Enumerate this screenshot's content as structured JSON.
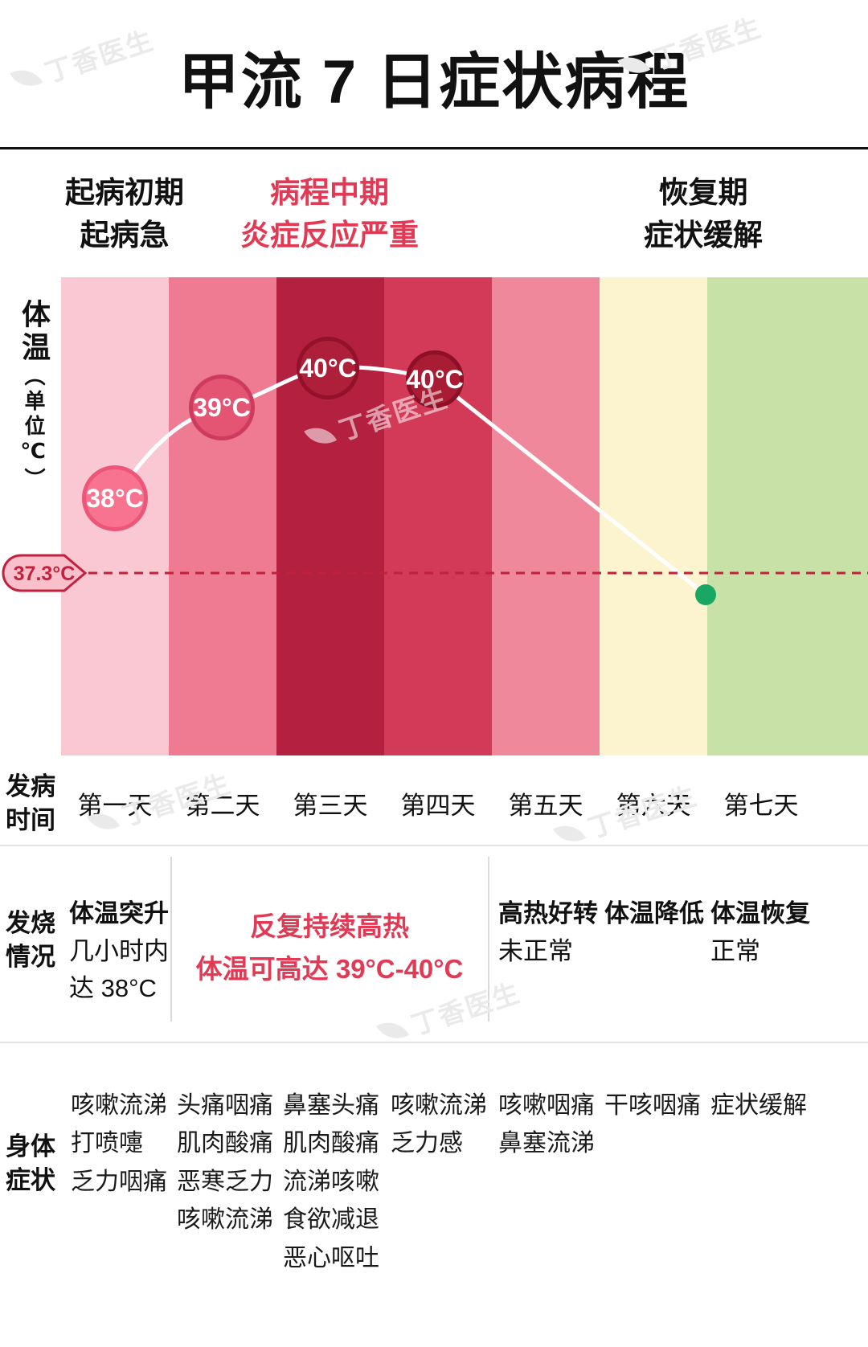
{
  "header": {
    "title": "甲流 7 日症状病程",
    "phases": [
      {
        "lines": [
          "起病初期",
          "起病急"
        ],
        "highlight": false
      },
      {
        "lines": [
          "病程中期",
          "炎症反应严重"
        ],
        "highlight": true
      },
      {
        "lines": [
          "恢复期",
          "症状缓解"
        ],
        "highlight": false
      }
    ]
  },
  "axis": {
    "title": "体温",
    "unit": "（单位℃）"
  },
  "colors": {
    "accent": "#e23a55",
    "threshold": "#c2203c",
    "curve": "#ffffff",
    "recovery_dot": "#19a863",
    "thermometer_fill": "#f9c0cc"
  },
  "chart_data": {
    "type": "line",
    "title": "甲流 7 日症状病程",
    "ylabel": "体温（单位℃）",
    "x_categories": [
      "第一天",
      "第二天",
      "第三天",
      "第四天",
      "第五天",
      "第六天",
      "第七天"
    ],
    "series": [
      {
        "name": "体温",
        "points": [
          {
            "x": "第一天",
            "value": 38,
            "label": "38°C"
          },
          {
            "x": "第二天",
            "value": 39,
            "label": "39°C"
          },
          {
            "x": "第三天",
            "value": 40,
            "label": "40°C"
          },
          {
            "x": "第四天",
            "value": 40,
            "label": "40°C"
          }
        ]
      }
    ],
    "recovery_point": {
      "x": "第六天/第七天",
      "value": 37.2
    },
    "threshold": {
      "value": 37.3,
      "label": "37.3°C"
    },
    "band_colors": [
      "#f9c8d2",
      "#ee7b92",
      "#b4203f",
      "#d23a57",
      "#f0889c",
      "#fcf3cf",
      "#c8e1a6"
    ],
    "point_fill_colors": [
      "#f7738f",
      "#e35573",
      "#ae2039",
      "#a81d33"
    ],
    "point_stroke_colors": [
      "#ee5679",
      "#ce3b5e",
      "#931129",
      "#8d1026"
    ],
    "line_color": "#ffffff",
    "threshold_color": "#c2203c",
    "recovery_point_color": "#19a863",
    "legend": "none",
    "grid": false
  },
  "rows": {
    "time": {
      "label": [
        "发病",
        "时间"
      ]
    },
    "fever": {
      "label": [
        "发烧",
        "情况"
      ],
      "day1": [
        "体温突升",
        "几小时内",
        "达 38°C"
      ],
      "day2to4": [
        "反复持续高热",
        "体温可高达 39°C-40°C"
      ],
      "day5": [
        "高热好转",
        "未正常"
      ],
      "day6": [
        "体温降低"
      ],
      "day7": [
        "体温恢复",
        "正常"
      ]
    },
    "symptoms": {
      "label": [
        "身体",
        "症状"
      ],
      "day1": [
        "咳嗽流涕",
        "打喷嚏",
        "乏力咽痛"
      ],
      "day2": [
        "头痛咽痛",
        "肌肉酸痛",
        "恶寒乏力",
        "咳嗽流涕"
      ],
      "day3": [
        "鼻塞头痛",
        "肌肉酸痛",
        "流涕咳嗽",
        "食欲减退",
        "恶心呕吐"
      ],
      "day4": [
        "咳嗽流涕",
        "乏力感"
      ],
      "day5": [
        "咳嗽咽痛",
        "鼻塞流涕"
      ],
      "day6": [
        "干咳咽痛"
      ],
      "day7": [
        "症状缓解"
      ]
    }
  },
  "watermark": {
    "text": "丁香医生"
  }
}
